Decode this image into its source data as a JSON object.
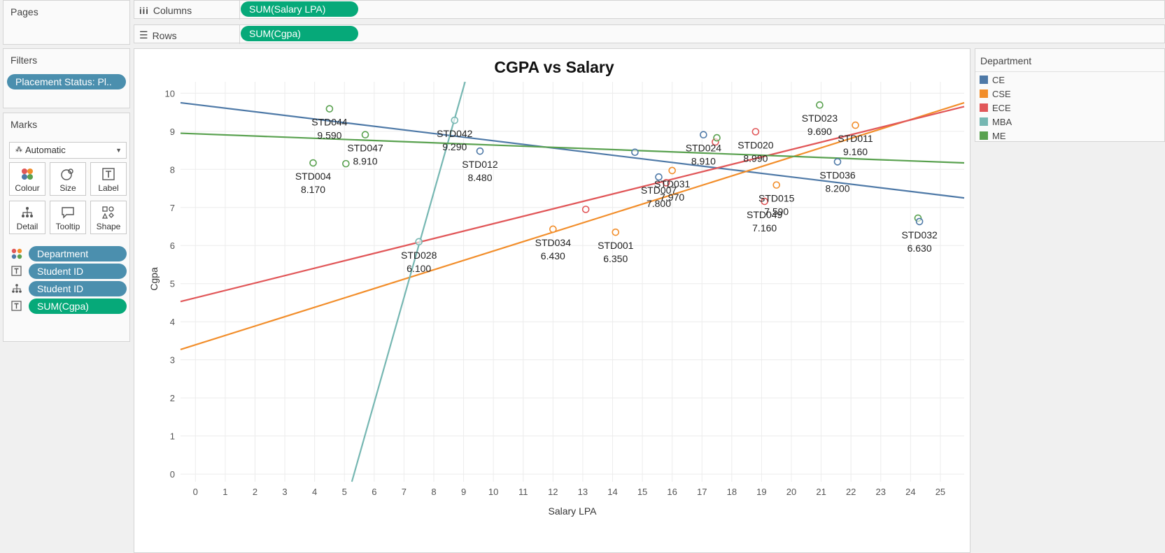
{
  "pages": {
    "title": "Pages"
  },
  "columns_shelf": {
    "label": "Columns",
    "pill": "SUM(Salary LPA)"
  },
  "rows_shelf": {
    "label": "Rows",
    "pill": "SUM(Cgpa)"
  },
  "filters": {
    "title": "Filters",
    "pill": "Placement Status: Pl.."
  },
  "marks": {
    "title": "Marks",
    "mark_type": "Automatic",
    "buttons": [
      {
        "label": "Colour",
        "icon": "colour-icon"
      },
      {
        "label": "Size",
        "icon": "size-icon"
      },
      {
        "label": "Label",
        "icon": "label-icon"
      },
      {
        "label": "Detail",
        "icon": "detail-icon"
      },
      {
        "label": "Tooltip",
        "icon": "tooltip-icon"
      },
      {
        "label": "Shape",
        "icon": "shape-icon"
      }
    ],
    "fields": [
      {
        "pill": "Department",
        "icon": "colour-icon",
        "color": "blue"
      },
      {
        "pill": "Student ID",
        "icon": "label-icon",
        "color": "blue"
      },
      {
        "pill": "Student ID",
        "icon": "detail-icon",
        "color": "blue"
      },
      {
        "pill": "SUM(Cgpa)",
        "icon": "label-icon",
        "color": "green"
      }
    ]
  },
  "legend": {
    "title": "Department",
    "items": [
      {
        "name": "CE",
        "color": "#4e79a7"
      },
      {
        "name": "CSE",
        "color": "#f28e2b"
      },
      {
        "name": "ECE",
        "color": "#e15759"
      },
      {
        "name": "MBA",
        "color": "#76b7b2"
      },
      {
        "name": "ME",
        "color": "#59a14f"
      }
    ]
  },
  "chart_data": {
    "type": "scatter",
    "title": "CGPA vs Salary",
    "xlabel": "Salary LPA",
    "ylabel": "Cgpa",
    "xlim": [
      -0.5,
      25.8
    ],
    "ylim": [
      -0.2,
      10.3
    ],
    "xticks": [
      0,
      1,
      2,
      3,
      4,
      5,
      6,
      7,
      8,
      9,
      10,
      11,
      12,
      13,
      14,
      15,
      16,
      17,
      18,
      19,
      20,
      21,
      22,
      23,
      24,
      25
    ],
    "yticks": [
      0,
      1,
      2,
      3,
      4,
      5,
      6,
      7,
      8,
      9,
      10
    ],
    "grid": true,
    "points": [
      {
        "dept": "ME",
        "x": 4.5,
        "y": 9.59,
        "id": "STD044",
        "value": "9.590"
      },
      {
        "dept": "ME",
        "x": 5.7,
        "y": 8.91,
        "id": "STD047",
        "value": "8.910"
      },
      {
        "dept": "ME",
        "x": 3.95,
        "y": 8.17,
        "id": "STD004",
        "value": "8.170"
      },
      {
        "dept": "ME",
        "x": 5.05,
        "y": 8.15
      },
      {
        "dept": "MBA",
        "x": 8.7,
        "y": 9.29,
        "id": "STD042",
        "value": "9.290"
      },
      {
        "dept": "CE",
        "x": 9.55,
        "y": 8.48,
        "id": "STD012",
        "value": "8.480"
      },
      {
        "dept": "MBA",
        "x": 7.5,
        "y": 6.1,
        "id": "STD028",
        "value": "6.100"
      },
      {
        "dept": "CSE",
        "x": 12.0,
        "y": 6.43,
        "id": "STD034",
        "value": "6.430"
      },
      {
        "dept": "ECE",
        "x": 13.1,
        "y": 6.95
      },
      {
        "dept": "CSE",
        "x": 14.1,
        "y": 6.35,
        "id": "STD001",
        "value": "6.350"
      },
      {
        "dept": "CE",
        "x": 14.75,
        "y": 8.45
      },
      {
        "dept": "CE",
        "x": 15.55,
        "y": 7.8,
        "id": "STD007",
        "value": "7.800"
      },
      {
        "dept": "ECE",
        "x": 15.8,
        "y": 7.65
      },
      {
        "dept": "CSE",
        "x": 16.0,
        "y": 7.97,
        "id": "STD031",
        "value": "7.970"
      },
      {
        "dept": "CE",
        "x": 17.05,
        "y": 8.91,
        "id": "STD024",
        "value": "8.910"
      },
      {
        "dept": "ECE",
        "x": 17.45,
        "y": 8.72
      },
      {
        "dept": "ME",
        "x": 17.5,
        "y": 8.83
      },
      {
        "dept": "ECE",
        "x": 18.8,
        "y": 8.99,
        "id": "STD020",
        "value": "8.990"
      },
      {
        "dept": "ECE",
        "x": 19.1,
        "y": 7.16,
        "id": "STD049",
        "value": "7.160"
      },
      {
        "dept": "CSE",
        "x": 19.5,
        "y": 7.59,
        "id": "STD015",
        "value": "7.590"
      },
      {
        "dept": "ME",
        "x": 20.95,
        "y": 9.69,
        "id": "STD023",
        "value": "9.690"
      },
      {
        "dept": "CE",
        "x": 21.55,
        "y": 8.2,
        "id": "STD036",
        "value": "8.200"
      },
      {
        "dept": "CSE",
        "x": 22.15,
        "y": 9.16,
        "id": "STD011",
        "value": "9.160"
      },
      {
        "dept": "ME",
        "x": 24.25,
        "y": 6.72
      },
      {
        "dept": "CE",
        "x": 24.3,
        "y": 6.63,
        "id": "STD032",
        "value": "6.630"
      }
    ],
    "trend_lines": [
      {
        "dept": "CE",
        "x0": -0.5,
        "y0": 9.75,
        "x1": 25.8,
        "y1": 7.25
      },
      {
        "dept": "CSE",
        "x0": -0.5,
        "y0": 3.27,
        "x1": 25.8,
        "y1": 9.75
      },
      {
        "dept": "ECE",
        "x0": -0.5,
        "y0": 4.53,
        "x1": 25.8,
        "y1": 9.65
      },
      {
        "dept": "MBA",
        "x0": 5.25,
        "y0": -0.2,
        "x1": 9.05,
        "y1": 10.3
      },
      {
        "dept": "ME",
        "x0": -0.5,
        "y0": 8.95,
        "x1": 25.8,
        "y1": 8.17
      }
    ]
  }
}
